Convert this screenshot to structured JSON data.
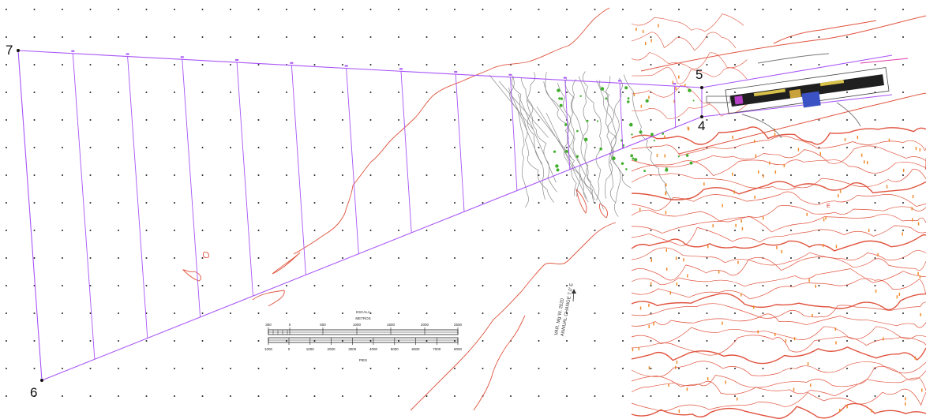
{
  "points": {
    "p4": "4",
    "p5": "5",
    "p6": "6",
    "p7": "7"
  },
  "scale_bar": {
    "title": "ESCALA",
    "top_unit": "METROS",
    "top_ticks": [
      "300",
      "0",
      "500",
      "1000",
      "1500",
      "2000",
      "2500"
    ],
    "bottom_ticks": [
      "1000",
      "0",
      "1000",
      "2000",
      "3000",
      "4000",
      "5000",
      "6000",
      "7000",
      "8000"
    ],
    "bottom_unit": "PIES"
  },
  "magnetic_note": {
    "line1": "VAR. Mg W. 2020",
    "line2": "ANNUAL CHANGE 7.0' E"
  },
  "terrain_label": "E",
  "colors": {
    "surface_outline": "#a855f7",
    "contour": "#e0533e",
    "terrain_lines": "#8c8c8c",
    "vegetation": "#3fae2a",
    "grid_dot": "#222222"
  }
}
